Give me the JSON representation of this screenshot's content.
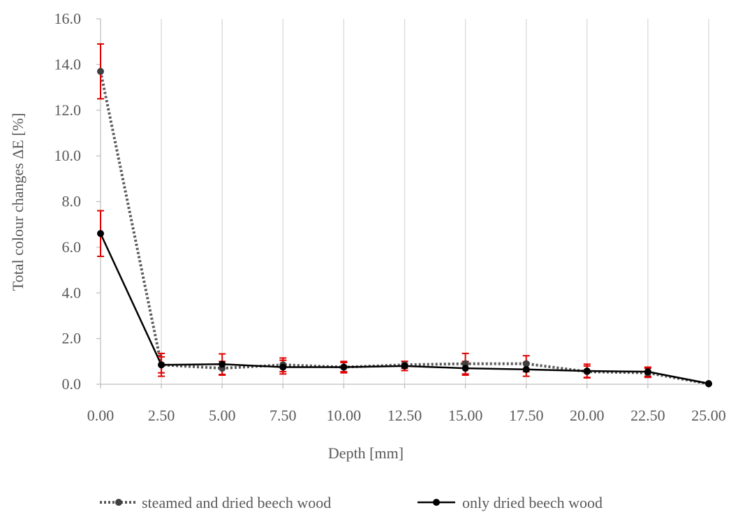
{
  "chart_data": {
    "type": "line",
    "title": "",
    "xlabel": "Depth [mm]",
    "ylabel": "Total colour changes ΔE [%]",
    "x": [
      0.0,
      2.5,
      5.0,
      7.5,
      10.0,
      12.5,
      15.0,
      17.5,
      20.0,
      22.5,
      25.0
    ],
    "x_tick_labels": [
      "0.00",
      "2.50",
      "5.00",
      "7.50",
      "10.00",
      "12.50",
      "15.00",
      "17.50",
      "20.00",
      "22.50",
      "25.00"
    ],
    "y_tick_labels": [
      "0.0",
      "2.0",
      "4.0",
      "6.0",
      "8.0",
      "10.0",
      "12.0",
      "14.0",
      "16.0"
    ],
    "xlim": [
      0,
      25
    ],
    "ylim": [
      0,
      16
    ],
    "grid": "vertical",
    "legend_position": "bottom",
    "series": [
      {
        "name": "steamed and dried beech wood",
        "style": "dotted",
        "color": "#595959",
        "marker_color": "#404040",
        "values": [
          13.7,
          0.85,
          0.7,
          0.85,
          0.75,
          0.85,
          0.9,
          0.9,
          0.55,
          0.5,
          0.02
        ],
        "error": [
          1.2,
          0.35,
          0.3,
          0.3,
          0.2,
          0.15,
          0.45,
          0.35,
          0.25,
          0.2,
          0.0
        ]
      },
      {
        "name": "only dried beech wood",
        "style": "solid",
        "color": "#000000",
        "marker_color": "#000000",
        "values": [
          6.6,
          0.85,
          0.88,
          0.75,
          0.75,
          0.8,
          0.7,
          0.65,
          0.58,
          0.55,
          0.03
        ],
        "error": [
          1.0,
          0.5,
          0.45,
          0.3,
          0.25,
          0.2,
          0.3,
          0.3,
          0.3,
          0.2,
          0.0
        ]
      }
    ],
    "error_bar_color": "#e00000"
  }
}
